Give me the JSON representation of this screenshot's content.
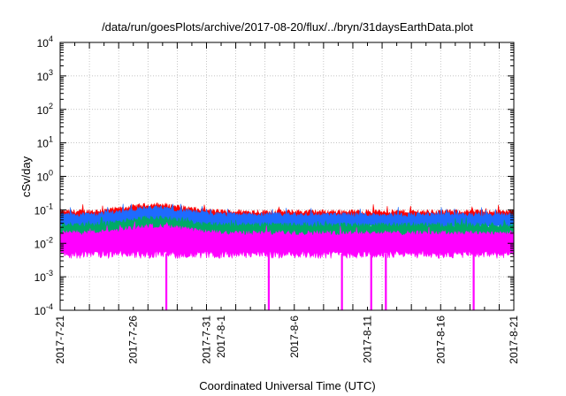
{
  "chart_data": {
    "type": "line",
    "title": "/data/run/goesPlots/archive/2017-08-20/flux/../bryn/31daysEarthData.plot",
    "xlabel": "Coordinated Universal Time (UTC)",
    "ylabel": "cSv/day",
    "y_scale": "log",
    "ylim": [
      0.0001,
      10000
    ],
    "xlim": [
      "2017-07-21",
      "2017-08-21"
    ],
    "grid": true,
    "legend": "none",
    "x_ticks": [
      "2017-7-21",
      "2017-7-26",
      "2017-7-31",
      "2017-8-1",
      "2017-8-6",
      "2017-8-11",
      "2017-8-16",
      "2017-8-21"
    ],
    "y_ticks": [
      {
        "base": "10",
        "exp": "-4"
      },
      {
        "base": "10",
        "exp": "-3"
      },
      {
        "base": "10",
        "exp": "-2"
      },
      {
        "base": "10",
        "exp": "-1"
      },
      {
        "base": "10",
        "exp": "0"
      },
      {
        "base": "10",
        "exp": "1"
      },
      {
        "base": "10",
        "exp": "2"
      },
      {
        "base": "10",
        "exp": "3"
      },
      {
        "base": "10",
        "exp": "4"
      }
    ],
    "series": [
      {
        "color": "#ff0000",
        "typical_upper": 0.085,
        "typical_lower": 0.05,
        "max": 0.2
      },
      {
        "color": "#1e6bff",
        "typical_upper": 0.07,
        "typical_lower": 0.03,
        "max": 0.15
      },
      {
        "color": "#00aa66",
        "typical_upper": 0.035,
        "typical_lower": 0.015,
        "max": 0.06
      },
      {
        "color": "#ff00ff",
        "typical_upper": 0.02,
        "typical_lower": 0.005,
        "max": 0.045
      }
    ],
    "dropouts": [
      "2017-07-28",
      "2017-08-04",
      "2017-08-09",
      "2017-08-11",
      "2017-08-12",
      "2017-08-18"
    ]
  }
}
